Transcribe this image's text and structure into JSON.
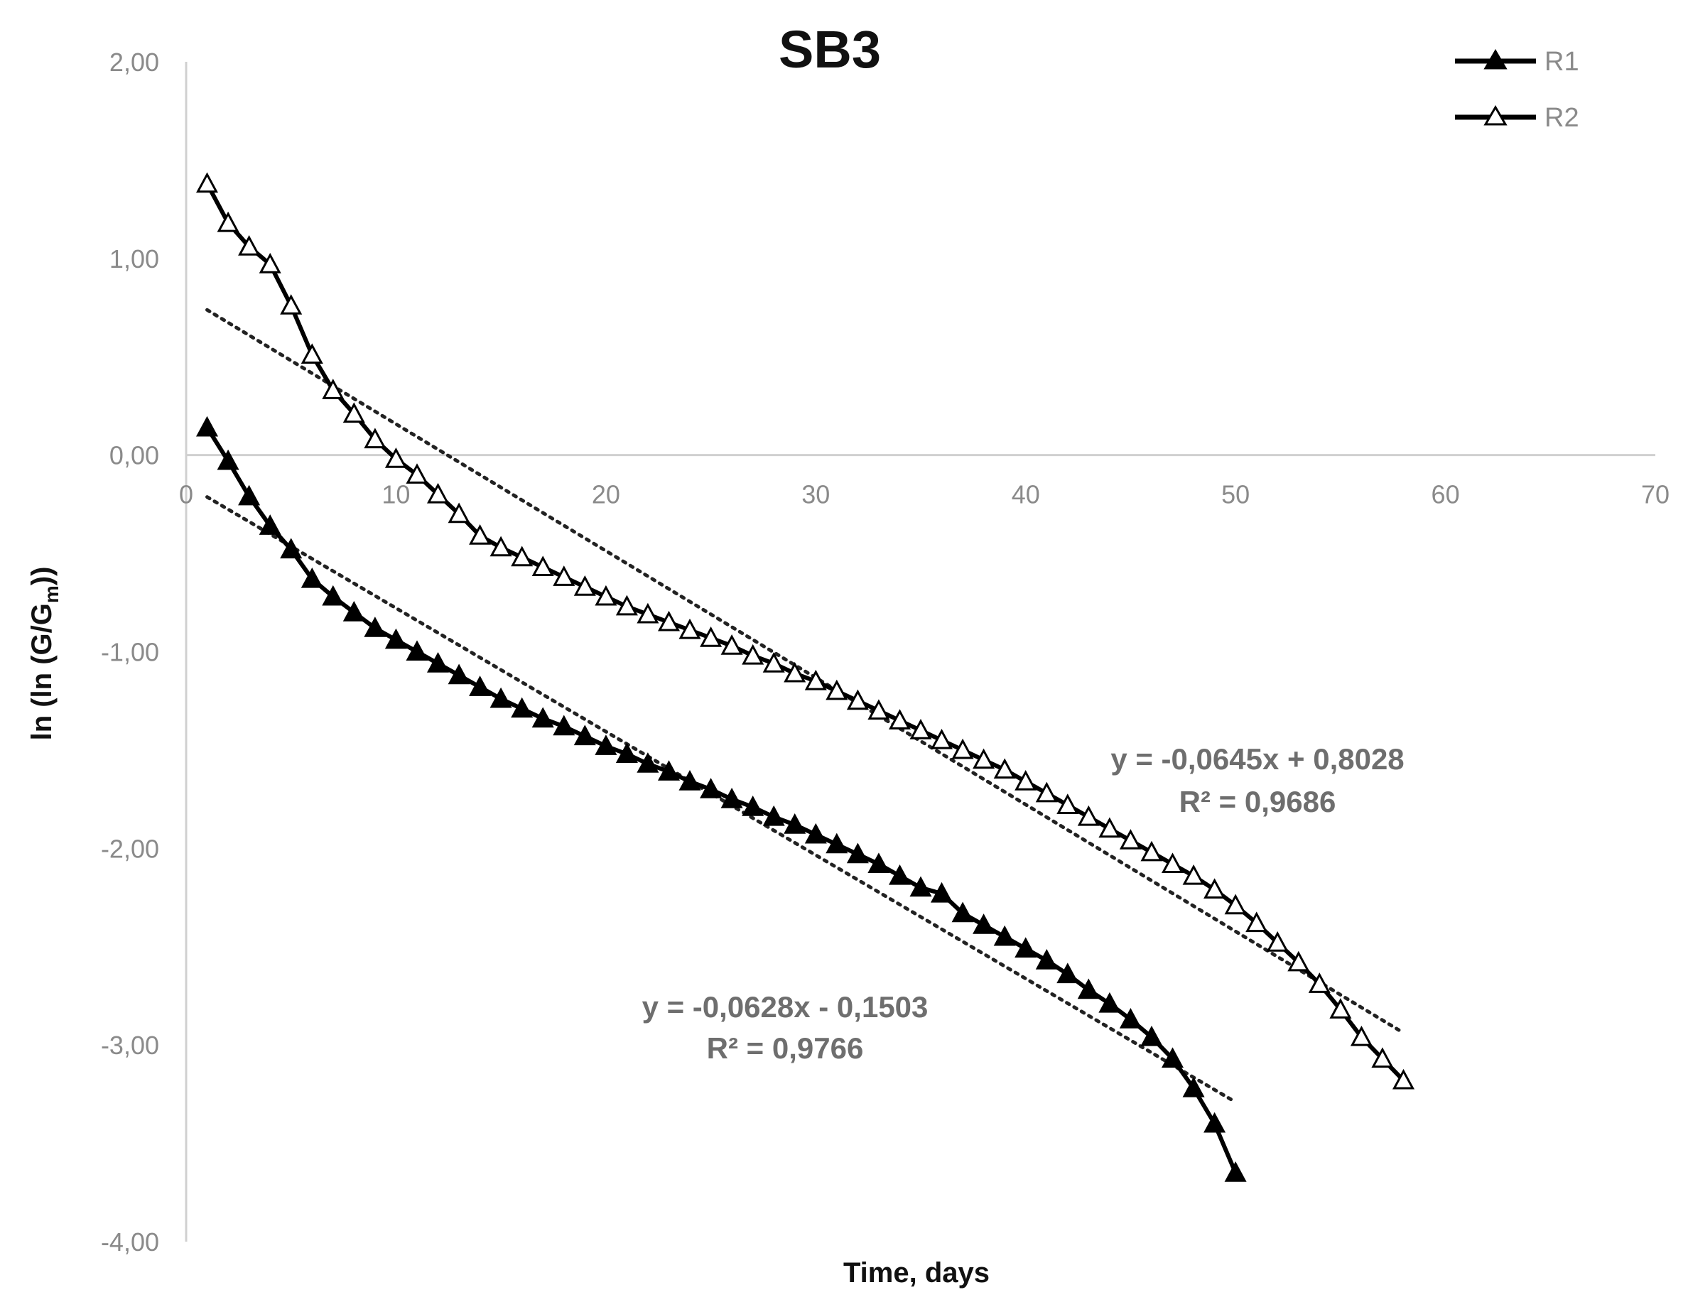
{
  "chart_data": {
    "type": "line",
    "title": "SB3",
    "xlabel": "Time, days",
    "ylabel": "ln (ln (G/Gm))",
    "ylabel_parts": {
      "pre": "ln (ln (G/G",
      "sub": "m",
      "post": "))"
    },
    "xlim": [
      0,
      70
    ],
    "ylim": [
      -4,
      2
    ],
    "x_ticks": [
      0,
      10,
      20,
      30,
      40,
      50,
      60,
      70
    ],
    "x_tick_labels": [
      "0",
      "10",
      "20",
      "30",
      "40",
      "50",
      "60",
      "70"
    ],
    "y_ticks": [
      2,
      1,
      0,
      -1,
      -2,
      -3,
      -4
    ],
    "y_tick_labels": [
      "2,00",
      "1,00",
      "0,00",
      "-1,00",
      "-2,00",
      "-3,00",
      "-4,00"
    ],
    "grid": false,
    "legend_position": "top-right",
    "series": [
      {
        "name": "R1",
        "marker": "filled-triangle",
        "color": "#000000",
        "x": [
          1,
          2,
          3,
          4,
          5,
          6,
          7,
          8,
          9,
          10,
          11,
          12,
          13,
          14,
          15,
          16,
          17,
          18,
          19,
          20,
          21,
          22,
          23,
          24,
          25,
          26,
          27,
          28,
          29,
          30,
          31,
          32,
          33,
          34,
          35,
          36,
          37,
          38,
          39,
          40,
          41,
          42,
          43,
          44,
          45,
          46,
          47,
          48,
          49,
          50
        ],
        "y": [
          0.14,
          -0.03,
          -0.21,
          -0.36,
          -0.48,
          -0.63,
          -0.72,
          -0.8,
          -0.88,
          -0.94,
          -1.0,
          -1.06,
          -1.12,
          -1.18,
          -1.24,
          -1.29,
          -1.34,
          -1.38,
          -1.43,
          -1.48,
          -1.52,
          -1.57,
          -1.61,
          -1.66,
          -1.7,
          -1.75,
          -1.79,
          -1.84,
          -1.88,
          -1.93,
          -1.98,
          -2.03,
          -2.08,
          -2.14,
          -2.2,
          -2.23,
          -2.33,
          -2.39,
          -2.45,
          -2.51,
          -2.57,
          -2.64,
          -2.72,
          -2.79,
          -2.87,
          -2.96,
          -3.07,
          -3.22,
          -3.4,
          -3.65
        ]
      },
      {
        "name": "R2",
        "marker": "hollow-triangle",
        "color": "#000000",
        "x": [
          1,
          2,
          3,
          4,
          5,
          6,
          7,
          8,
          9,
          10,
          11,
          12,
          13,
          14,
          15,
          16,
          17,
          18,
          19,
          20,
          21,
          22,
          23,
          24,
          25,
          26,
          27,
          28,
          29,
          30,
          31,
          32,
          33,
          34,
          35,
          36,
          37,
          38,
          39,
          40,
          41,
          42,
          43,
          44,
          45,
          46,
          47,
          48,
          49,
          50,
          51,
          52,
          53,
          54,
          55,
          56,
          57,
          58
        ],
        "y": [
          1.38,
          1.18,
          1.06,
          0.97,
          0.76,
          0.51,
          0.33,
          0.21,
          0.08,
          -0.02,
          -0.1,
          -0.2,
          -0.3,
          -0.41,
          -0.47,
          -0.52,
          -0.57,
          -0.62,
          -0.67,
          -0.72,
          -0.77,
          -0.81,
          -0.85,
          -0.89,
          -0.93,
          -0.97,
          -1.02,
          -1.06,
          -1.11,
          -1.15,
          -1.2,
          -1.25,
          -1.3,
          -1.35,
          -1.4,
          -1.45,
          -1.5,
          -1.55,
          -1.6,
          -1.66,
          -1.72,
          -1.78,
          -1.84,
          -1.9,
          -1.96,
          -2.02,
          -2.08,
          -2.14,
          -2.21,
          -2.29,
          -2.38,
          -2.48,
          -2.58,
          -2.69,
          -2.82,
          -2.96,
          -3.07,
          -3.18
        ]
      }
    ],
    "trendlines": [
      {
        "series": "R1",
        "slope": -0.0628,
        "intercept": -0.1503,
        "x_range": [
          1,
          50
        ],
        "equation": "y = -0,0628x - 0,1503",
        "r2": "R² = 0,9766"
      },
      {
        "series": "R2",
        "slope": -0.0645,
        "intercept": 0.8028,
        "x_range": [
          1,
          58
        ],
        "equation": "y = -0,0645x + 0,8028",
        "r2": "R² = 0,9686"
      }
    ]
  }
}
